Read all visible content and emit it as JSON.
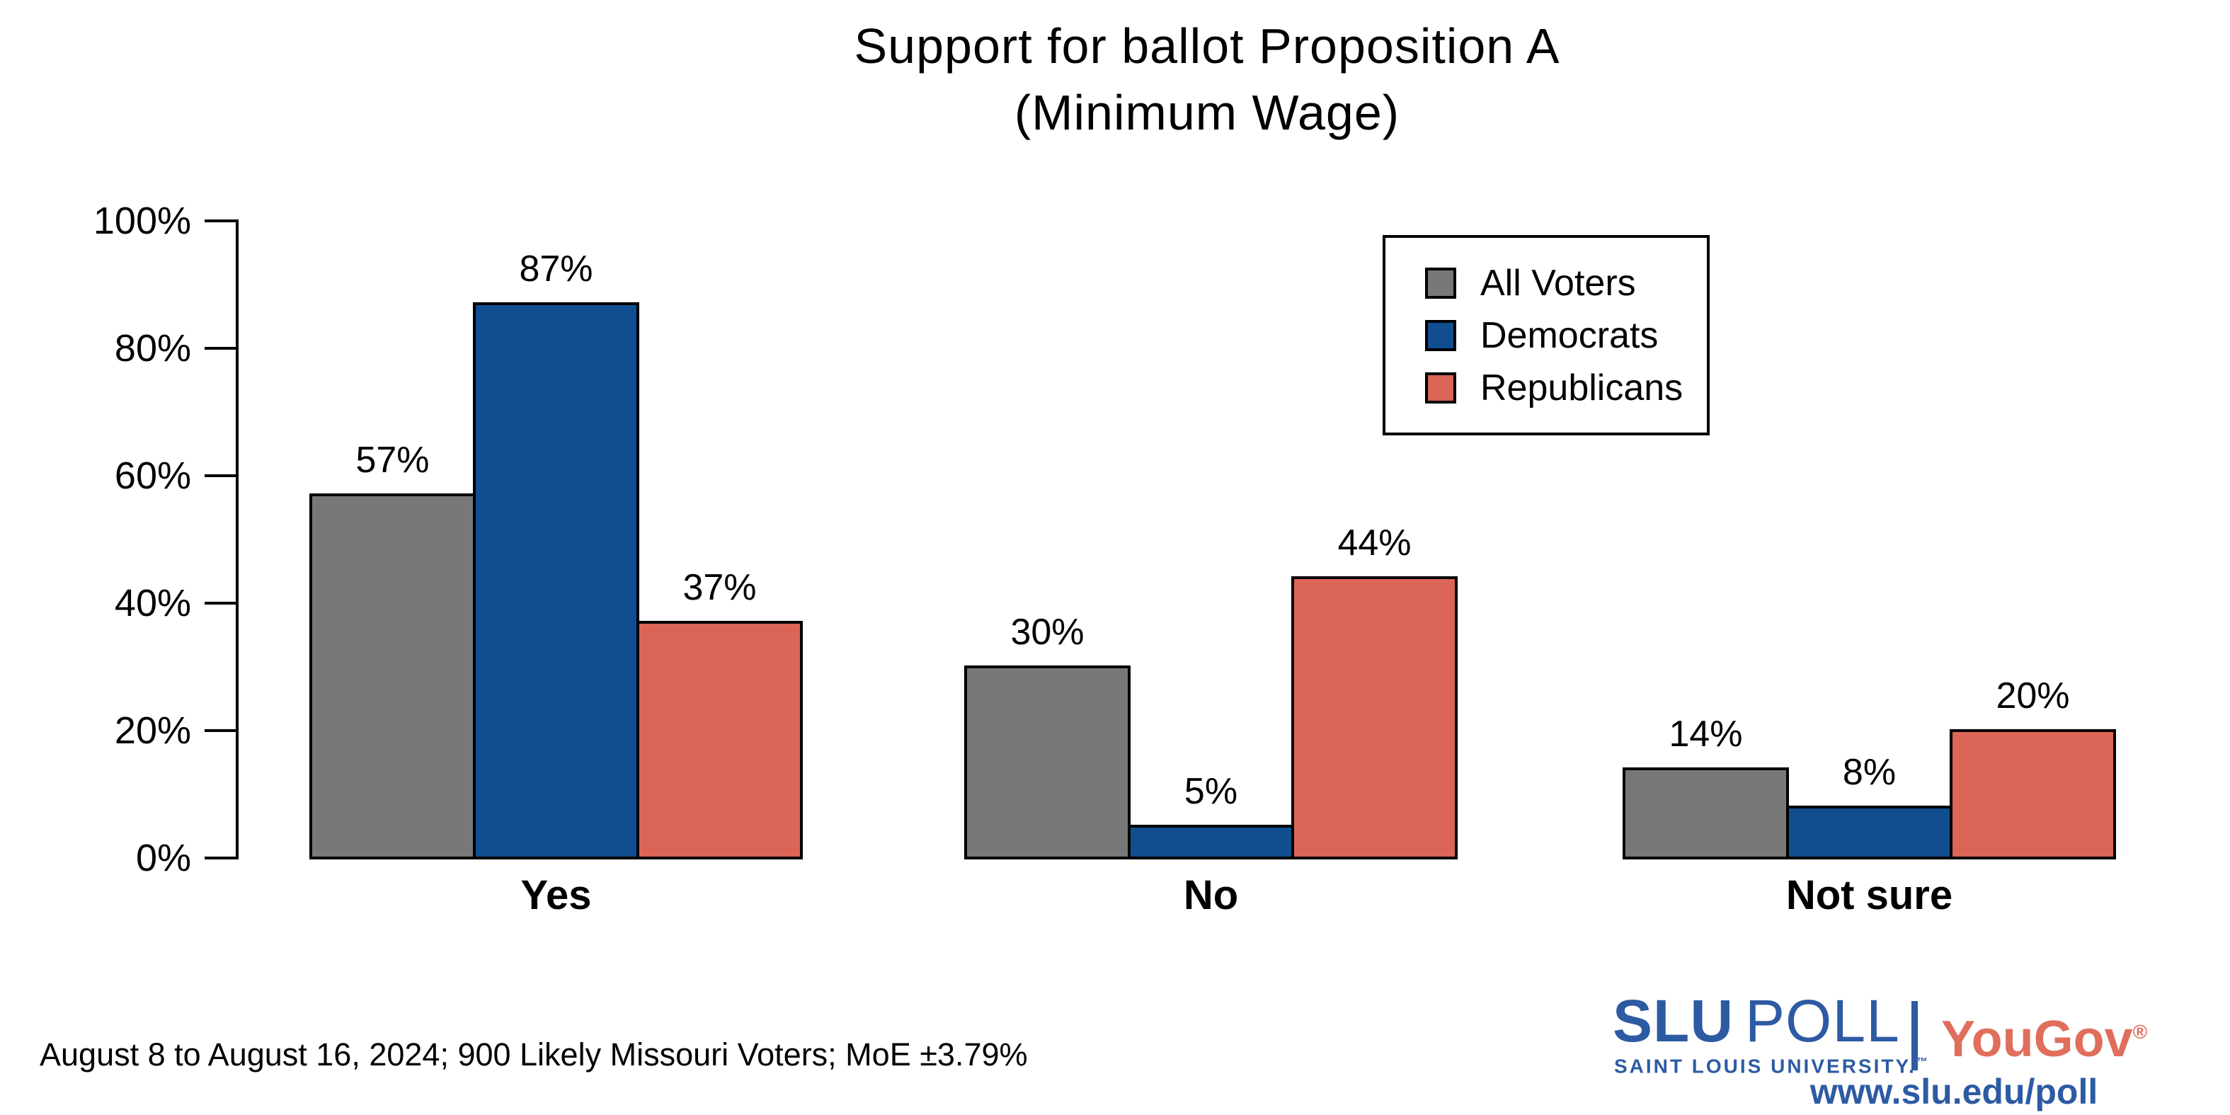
{
  "title": {
    "line1": "Support for ballot Proposition A",
    "line2": "(Minimum Wage)"
  },
  "chart_data": {
    "type": "bar",
    "title": "Support for ballot Proposition A (Minimum Wage)",
    "categories": [
      "Yes",
      "No",
      "Not sure"
    ],
    "series": [
      {
        "name": "All Voters",
        "color": "#787878",
        "values": [
          57,
          30,
          14
        ]
      },
      {
        "name": "Democrats",
        "color": "#114E90",
        "values": [
          87,
          5,
          8
        ]
      },
      {
        "name": "Republicans",
        "color": "#DB6556",
        "values": [
          37,
          44,
          20
        ]
      }
    ],
    "value_suffix": "%",
    "xlabel": "",
    "ylabel": "",
    "ylim": [
      0,
      100
    ],
    "yticks": [
      0,
      20,
      40,
      60,
      80,
      100
    ],
    "ytick_labels": [
      "0%",
      "20%",
      "40%",
      "60%",
      "80%",
      "100%"
    ],
    "grid": false,
    "legend_position": "upper right"
  },
  "footnote": "August 8 to August 16, 2024; 900 Likely Missouri Voters; MoE ±3.79%",
  "branding": {
    "slu_word1": "SLU",
    "slu_word2": "POLL",
    "slu_subtext": "SAINT LOUIS UNIVERSITY.",
    "slu_subtext_mark": "™",
    "partner": "YouGov",
    "partner_mark": "®",
    "url": "www.slu.edu/poll",
    "slu_blue": "#2D5BA3",
    "yougov_red": "#E06E5C"
  }
}
